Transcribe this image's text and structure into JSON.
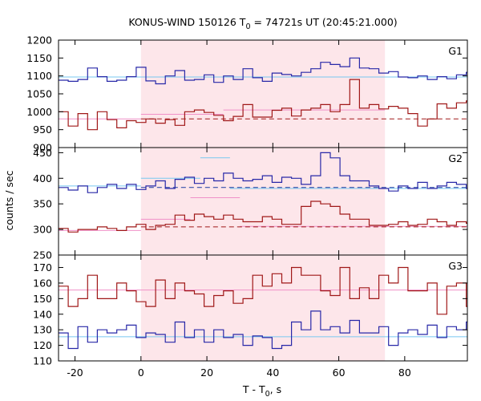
{
  "chart_data": {
    "type": "line",
    "title_main": "KONUS-WIND 150126 T",
    "title_sub": "0",
    "title_rest": " = 74721s UT (20:45:21.000)",
    "xlabel_main": "T - T",
    "xlabel_sub": "0",
    "xlabel_rest": ", s",
    "ylabel": "counts / sec",
    "xlim": [
      -25,
      99
    ],
    "x_ticks": [
      -20,
      0,
      20,
      40,
      60,
      80
    ],
    "shaded_interval": [
      0,
      74
    ],
    "colors": {
      "shade": "#fde6ea",
      "blue_step": "#2828a8",
      "blue_fit": "#78c8f0",
      "red_step": "#a01818",
      "pink_fit": "#f090c8",
      "red_dashed": "#a01818",
      "blue_dashed": "#1a3aa0"
    },
    "panels": [
      {
        "label": "G1",
        "ylim": [
          900,
          1200
        ],
        "y_ticks": [
          900,
          950,
          1000,
          1050,
          1100,
          1150,
          1200
        ],
        "step_series": [
          {
            "name": "",
            "color_key": "blue_step",
            "x0": -25,
            "dx": 2.944,
            "values": [
              1088,
              1085,
              1090,
              1122,
              1098,
              1085,
              1088,
              1098,
              1124,
              1086,
              1078,
              1100,
              1115,
              1088,
              1090,
              1103,
              1082,
              1100,
              1090,
              1120,
              1095,
              1085,
              1108,
              1104,
              1100,
              1110,
              1120,
              1138,
              1132,
              1126,
              1150,
              1122,
              1120,
              1108,
              1112,
              1097,
              1095,
              1100,
              1090,
              1098,
              1092,
              1103,
              1110,
              1082,
              1087,
              1092,
              1102,
              1096,
              1100,
              1095,
              1085,
              1108,
              1090,
              1102,
              1085,
              1106,
              1092,
              1104,
              1100,
              1091,
              1101,
              1088,
              1135,
              1101,
              1098,
              1120,
              1095,
              1120,
              1100,
              1088,
              1082,
              1096,
              1088,
              1094,
              1085,
              1105,
              1098,
              1098,
              1094,
              1090,
              1102,
              1090,
              1096,
              1085,
              1104,
              1124,
              1100
            ]
          },
          {
            "name": "",
            "color_key": "red_step",
            "x0": -25,
            "dx": 2.944,
            "values": [
              1000,
              960,
              995,
              950,
              1000,
              978,
              955,
              975,
              970,
              980,
              968,
              978,
              962,
              1000,
              1005,
              998,
              990,
              975,
              987,
              1020,
              985,
              985,
              1004,
              1010,
              988,
              1005,
              1010,
              1020,
              1000,
              1020,
              1090,
              1010,
              1020,
              1008,
              1015,
              1010,
              995,
              960,
              980,
              1022,
              1010,
              1025,
              1030,
              1010,
              1015,
              1005,
              985,
              1000,
              998,
              1010,
              1023,
              1008,
              983,
              1005,
              1000,
              1015,
              983,
              1012,
              1000,
              1025,
              993,
              1007,
              1000,
              995,
              1000,
              1003,
              1005,
              1000,
              1005,
              1020,
              975,
              975,
              972,
              980,
              970,
              960,
              968,
              975,
              970,
              980,
              965,
              968,
              980,
              998,
              970,
              985,
              975
            ]
          }
        ],
        "fit_lines": [
          {
            "color_key": "blue_fit",
            "style": "solid",
            "segments": [
              [
                -25,
                99,
                1097
              ]
            ]
          },
          {
            "color_key": "pink_fit",
            "style": "solid",
            "segments": [
              [
                -25,
                0,
                980
              ],
              [
                0,
                25,
                993
              ],
              [
                25,
                37,
                1005
              ],
              [
                37,
                52,
                1005
              ],
              [
                52,
                74,
                1005
              ]
            ]
          },
          {
            "color_key": "red_dashed",
            "style": "dashed",
            "segments": [
              [
                0,
                99,
                980
              ]
            ]
          }
        ]
      },
      {
        "label": "G2",
        "ylim": [
          250,
          460
        ],
        "y_ticks": [
          250,
          300,
          350,
          400,
          450
        ],
        "step_series": [
          {
            "name": "",
            "color_key": "blue_step",
            "x0": -25,
            "dx": 2.944,
            "values": [
              382,
              377,
              385,
              372,
              382,
              388,
              380,
              388,
              378,
              385,
              395,
              380,
              398,
              402,
              390,
              400,
              395,
              410,
              400,
              395,
              398,
              405,
              392,
              402,
              400,
              388,
              405,
              450,
              440,
              405,
              395,
              395,
              385,
              380,
              375,
              385,
              380,
              392,
              380,
              385,
              392,
              388,
              380,
              385,
              380,
              370,
              380,
              384,
              380,
              372,
              386,
              376,
              385,
              370,
              380,
              386,
              378,
              385,
              382,
              384,
              380,
              377,
              383,
              392,
              386,
              385,
              390,
              380,
              388,
              378,
              385,
              380,
              380,
              388,
              382,
              384,
              380,
              378,
              378,
              390,
              385,
              395,
              380,
              388,
              392,
              398,
              380
            ]
          },
          {
            "name": "",
            "color_key": "red_step",
            "x0": -25,
            "dx": 2.944,
            "values": [
              302,
              295,
              300,
              300,
              305,
              302,
              298,
              305,
              310,
              300,
              308,
              310,
              328,
              318,
              330,
              325,
              320,
              328,
              320,
              315,
              315,
              325,
              320,
              310,
              310,
              345,
              355,
              350,
              345,
              330,
              320,
              320,
              308,
              308,
              310,
              315,
              308,
              310,
              320,
              315,
              308,
              315,
              312,
              308,
              302,
              305,
              312,
              303,
              305,
              315,
              298,
              310,
              302,
              315,
              306,
              300,
              305,
              308,
              298,
              312,
              302,
              306,
              310,
              300,
              300,
              312,
              306,
              308,
              302,
              306,
              310,
              298,
              302,
              310,
              305,
              300,
              308,
              302,
              308,
              312,
              306,
              310,
              298,
              310,
              312,
              302,
              295
            ]
          }
        ],
        "fit_lines": [
          {
            "color_key": "blue_fit",
            "style": "solid",
            "segments": [
              [
                -25,
                0,
                385
              ],
              [
                0,
                18,
                400
              ],
              [
                18,
                27,
                440
              ],
              [
                27,
                99,
                380
              ]
            ]
          },
          {
            "color_key": "pink_fit",
            "style": "solid",
            "segments": [
              [
                -25,
                0,
                298
              ],
              [
                0,
                15,
                320
              ],
              [
                15,
                30,
                362
              ],
              [
                30,
                99,
                306
              ]
            ]
          },
          {
            "color_key": "blue_dashed",
            "style": "dashed",
            "segments": [
              [
                0,
                99,
                382
              ]
            ]
          },
          {
            "color_key": "red_dashed",
            "style": "dashed",
            "segments": [
              [
                0,
                99,
                305
              ]
            ]
          }
        ]
      },
      {
        "label": "G3",
        "ylim": [
          110,
          178
        ],
        "y_ticks": [
          110,
          120,
          130,
          140,
          150,
          160,
          170
        ],
        "step_series": [
          {
            "name": "",
            "color_key": "red_step",
            "x0": -25,
            "dx": 2.944,
            "values": [
              158,
              145,
              150,
              165,
              150,
              150,
              160,
              155,
              148,
              145,
              162,
              150,
              160,
              155,
              153,
              145,
              152,
              155,
              147,
              150,
              165,
              158,
              166,
              160,
              170,
              165,
              165,
              155,
              152,
              170,
              150,
              157,
              150,
              165,
              160,
              170,
              155,
              155,
              160,
              140,
              158,
              160,
              145,
              142,
              148,
              160,
              160,
              155,
              160,
              158,
              163,
              158,
              162,
              160,
              160,
              155,
              148,
              152,
              160,
              160,
              150,
              162,
              158,
              155,
              152,
              157,
              150,
              152,
              155,
              150,
              148,
              145,
              150,
              160,
              153,
              148,
              155,
              162,
              150,
              150,
              152,
              160,
              156,
              148,
              152,
              156,
              150
            ]
          },
          {
            "name": "",
            "color_key": "blue_step",
            "x0": -25,
            "dx": 2.944,
            "values": [
              128,
              118,
              132,
              122,
              130,
              128,
              130,
              133,
              125,
              128,
              127,
              122,
              135,
              125,
              130,
              122,
              130,
              125,
              127,
              120,
              126,
              125,
              118,
              120,
              135,
              130,
              142,
              130,
              132,
              128,
              136,
              128,
              128,
              132,
              120,
              128,
              130,
              127,
              133,
              125,
              132,
              130,
              135,
              138,
              130,
              140,
              128,
              132,
              135,
              130,
              128,
              127,
              123,
              130,
              125,
              127,
              128,
              132,
              133,
              125,
              130,
              128,
              122,
              128,
              124,
              128,
              120,
              125,
              128,
              125,
              130,
              118,
              122,
              126,
              128,
              120,
              125,
              126,
              124,
              122,
              128,
              125,
              126,
              124,
              128,
              125,
              126
            ]
          }
        ],
        "fit_lines": [
          {
            "color_key": "pink_fit",
            "style": "solid",
            "segments": [
              [
                -25,
                99,
                155.5
              ]
            ]
          },
          {
            "color_key": "blue_fit",
            "style": "solid",
            "segments": [
              [
                -25,
                99,
                125.5
              ]
            ]
          }
        ]
      }
    ]
  }
}
